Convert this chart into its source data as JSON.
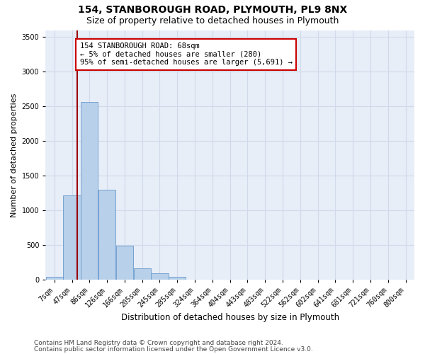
{
  "title1": "154, STANBOROUGH ROAD, PLYMOUTH, PL9 8NX",
  "title2": "Size of property relative to detached houses in Plymouth",
  "xlabel": "Distribution of detached houses by size in Plymouth",
  "ylabel": "Number of detached properties",
  "categories": [
    "7sqm",
    "47sqm",
    "86sqm",
    "126sqm",
    "166sqm",
    "205sqm",
    "245sqm",
    "285sqm",
    "324sqm",
    "364sqm",
    "404sqm",
    "443sqm",
    "483sqm",
    "522sqm",
    "562sqm",
    "602sqm",
    "641sqm",
    "681sqm",
    "721sqm",
    "760sqm",
    "800sqm"
  ],
  "bar_values": [
    50,
    1220,
    2560,
    1300,
    490,
    165,
    100,
    50,
    0,
    0,
    0,
    0,
    0,
    0,
    0,
    0,
    0,
    0,
    0,
    0,
    0
  ],
  "bar_color": "#b8d0ea",
  "bar_edge_color": "#6699cc",
  "grid_color": "#d0daea",
  "background_color": "#e8eef8",
  "vline_color": "#990000",
  "annotation_text": "154 STANBOROUGH ROAD: 68sqm\n← 5% of detached houses are smaller (280)\n95% of semi-detached houses are larger (5,691) →",
  "annotation_box_color": "#ffffff",
  "annotation_box_edge": "#cc0000",
  "ylim": [
    0,
    3600
  ],
  "yticks": [
    0,
    500,
    1000,
    1500,
    2000,
    2500,
    3000,
    3500
  ],
  "footer1": "Contains HM Land Registry data © Crown copyright and database right 2024.",
  "footer2": "Contains public sector information licensed under the Open Government Licence v3.0.",
  "title1_fontsize": 10,
  "title2_fontsize": 9,
  "xlabel_fontsize": 8.5,
  "ylabel_fontsize": 8,
  "tick_fontsize": 7,
  "footer_fontsize": 6.5,
  "annotation_fontsize": 7.5
}
